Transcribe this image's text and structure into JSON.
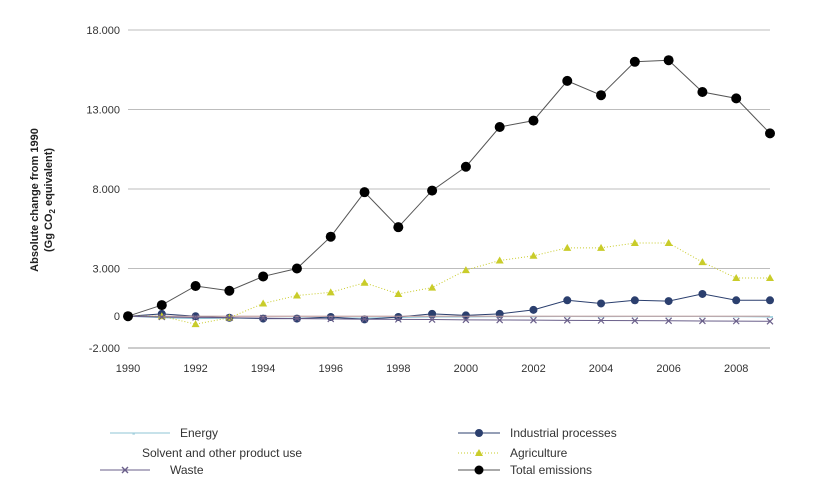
{
  "chart_data": {
    "type": "line",
    "title": "",
    "xlabel": "",
    "ylabel": "Absolute change from 1990 (Gg CO2 equivalent)",
    "ylabel_line1": "Absolute change from 1990",
    "ylabel_line2_pre": "(Gg CO",
    "ylabel_line2_sub": "2",
    "ylabel_line2_post": " equivalent)",
    "x": [
      1990,
      1991,
      1992,
      1993,
      1994,
      1995,
      1996,
      1997,
      1998,
      1999,
      2000,
      2001,
      2002,
      2003,
      2004,
      2005,
      2006,
      2007,
      2008,
      2009
    ],
    "x_tick_labels": [
      "1990",
      "1992",
      "1994",
      "1996",
      "1998",
      "2000",
      "2002",
      "2004",
      "2006",
      "2008"
    ],
    "x_tick_values": [
      1990,
      1992,
      1994,
      1996,
      1998,
      2000,
      2002,
      2004,
      2006,
      2008
    ],
    "xlim": [
      1990,
      2009
    ],
    "y_tick_labels": [
      "18.000",
      "13.000",
      "8.000",
      "3.000",
      "0",
      "-2.000"
    ],
    "y_tick_values": [
      18000,
      13000,
      8000,
      3000,
      0,
      -2000
    ],
    "ylim": [
      -2000,
      18000
    ],
    "grid": true,
    "legend_position": "bottom",
    "series": [
      {
        "name": "Energy",
        "color": "#8fc6d6",
        "marker": "dash",
        "values": [
          0,
          -100,
          -150,
          -120,
          -150,
          -120,
          -100,
          -120,
          -80,
          -50,
          -50,
          -30,
          -30,
          -20,
          -30,
          -20,
          -20,
          -20,
          -30,
          -50
        ]
      },
      {
        "name": "Industrial processes",
        "color": "#2b3f6e",
        "marker": "circle",
        "values": [
          0,
          150,
          0,
          -100,
          -150,
          -150,
          -50,
          -200,
          -50,
          150,
          50,
          150,
          400,
          1000,
          800,
          1000,
          950,
          1400,
          1000,
          1000
        ]
      },
      {
        "name": "Solvent and other product use",
        "color": "#c8a0a0",
        "marker": "none",
        "values": [
          0,
          0,
          0,
          0,
          0,
          0,
          0,
          0,
          0,
          0,
          0,
          0,
          0,
          0,
          0,
          0,
          0,
          0,
          0,
          0
        ]
      },
      {
        "name": "Agriculture",
        "color": "#c9cc2a",
        "marker": "triangle",
        "values": [
          0,
          0,
          -500,
          -100,
          800,
          1300,
          1500,
          2100,
          1400,
          1800,
          2900,
          3500,
          3800,
          4300,
          4300,
          4600,
          4600,
          3400,
          2400,
          2400
        ]
      },
      {
        "name": "Waste",
        "color": "#6a5f8a",
        "marker": "x",
        "values": [
          0,
          -50,
          -80,
          -100,
          -120,
          -150,
          -170,
          -190,
          -200,
          -210,
          -230,
          -240,
          -250,
          -260,
          -270,
          -280,
          -290,
          -300,
          -310,
          -320
        ]
      },
      {
        "name": "Total emissions",
        "color": "#000000",
        "marker": "dot",
        "values": [
          0,
          700,
          1900,
          1600,
          2500,
          3000,
          5000,
          7800,
          5600,
          7900,
          9400,
          11900,
          12300,
          14800,
          13900,
          16000,
          16100,
          14100,
          13700,
          11500
        ]
      }
    ]
  }
}
